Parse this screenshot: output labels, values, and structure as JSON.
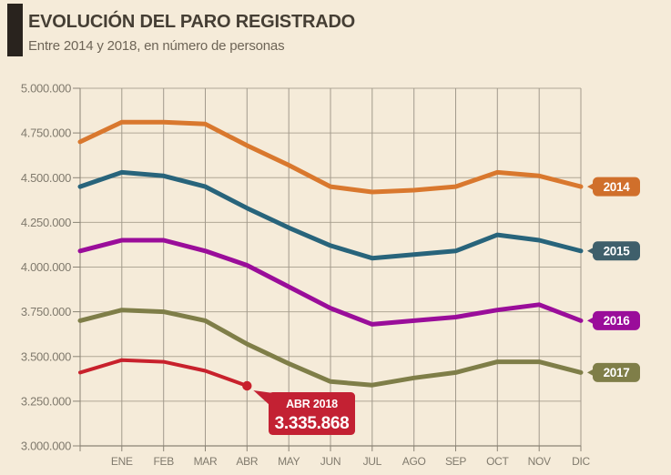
{
  "header": {
    "title": "EVOLUCIÓN DEL PARO REGISTRADO",
    "subtitle": "Entre 2014 y 2018, en número de personas"
  },
  "colors": {
    "background": "#f5ebd9",
    "accent_bar": "#29231e",
    "title_text": "#453e34",
    "subtitle_text": "#6e6557",
    "grid_horizontal": "#b0a796",
    "grid_vertical": "#a29a8c",
    "axis": "#8a8375",
    "tick_label": "#807a6d",
    "badge_text": "#ffffff"
  },
  "chart_data": {
    "type": "line",
    "title": "EVOLUCIÓN DEL PARO REGISTRADO",
    "subtitle": "Entre 2014 y 2018, en número de personas",
    "x_categories": [
      "ENE",
      "FEB",
      "MAR",
      "ABR",
      "MAY",
      "JUN",
      "JUL",
      "AGO",
      "SEP",
      "OCT",
      "NOV",
      "DIC"
    ],
    "y_axis": {
      "min": 3000000,
      "max": 5000000,
      "step": 250000,
      "tick_labels": [
        "5.000.000",
        "4.750.000",
        "4.500.000",
        "4.250.000",
        "4.000.000",
        "3.750.000",
        "3.500.000",
        "3.250.000",
        "3.000.000"
      ]
    },
    "ylim": [
      3000000,
      5000000
    ],
    "grid": true,
    "legend_position": "right-badges",
    "start_value_note": "start_value is the point drawn at the left plot edge, one month before ENE",
    "series": [
      {
        "name": "2014",
        "line_color": "#d9782e",
        "badge_color": "#d06f2b",
        "start_value": 4700000,
        "values": [
          4810000,
          4810000,
          4800000,
          4680000,
          4570000,
          4450000,
          4420000,
          4430000,
          4450000,
          4530000,
          4510000,
          4450000
        ]
      },
      {
        "name": "2015",
        "line_color": "#28647b",
        "badge_color": "#3f5f6b",
        "start_value": 4450000,
        "values": [
          4530000,
          4510000,
          4450000,
          4330000,
          4220000,
          4120000,
          4050000,
          4070000,
          4090000,
          4180000,
          4150000,
          4090000
        ]
      },
      {
        "name": "2016",
        "line_color": "#9a0d9a",
        "badge_color": "#9a0d9a",
        "start_value": 4090000,
        "values": [
          4150000,
          4150000,
          4090000,
          4010000,
          3890000,
          3770000,
          3680000,
          3700000,
          3720000,
          3760000,
          3790000,
          3700000
        ]
      },
      {
        "name": "2017",
        "line_color": "#7f7e48",
        "badge_color": "#7f7e48",
        "start_value": 3700000,
        "values": [
          3760000,
          3750000,
          3700000,
          3570000,
          3460000,
          3360000,
          3340000,
          3380000,
          3410000,
          3470000,
          3470000,
          3410000
        ]
      },
      {
        "name": "2018",
        "line_color": "#c8212c",
        "badge_color": null,
        "end_dot": true,
        "start_value": 3410000,
        "values": [
          3480000,
          3470000,
          3420000,
          3335868
        ]
      }
    ],
    "annotation": {
      "label": "ABR 2018",
      "value_label": "3.335.868",
      "value": 3335868,
      "series": "2018",
      "month": "ABR",
      "box_color": "#c32133",
      "text_color": "#ffffff"
    }
  }
}
